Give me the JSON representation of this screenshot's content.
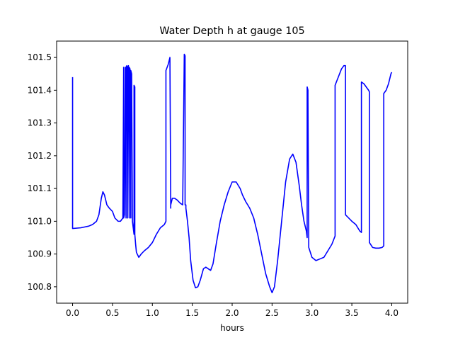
{
  "chart_data": {
    "type": "line",
    "title": "Water Depth h at gauge 105",
    "xlabel": "hours",
    "ylabel": "",
    "xlim": [
      -0.2,
      4.2
    ],
    "ylim": [
      100.75,
      101.55
    ],
    "grid": false,
    "xticks": [
      0.0,
      0.5,
      1.0,
      1.5,
      2.0,
      2.5,
      3.0,
      3.5,
      4.0
    ],
    "xtick_labels": [
      "0.0",
      "0.5",
      "1.0",
      "1.5",
      "2.0",
      "2.5",
      "3.0",
      "3.5",
      "4.0"
    ],
    "yticks": [
      100.8,
      100.9,
      101.0,
      101.1,
      101.2,
      101.3,
      101.4,
      101.5
    ],
    "ytick_labels": [
      "100.8",
      "100.9",
      "101.0",
      "101.1",
      "101.2",
      "101.3",
      "101.4",
      "101.5"
    ],
    "series": [
      {
        "color": "#0000ff",
        "x": [
          0.0,
          0.0,
          0.0,
          0.1,
          0.2,
          0.25,
          0.3,
          0.33,
          0.36,
          0.38,
          0.4,
          0.43,
          0.46,
          0.5,
          0.53,
          0.57,
          0.6,
          0.63,
          0.64,
          0.64,
          0.65,
          0.66,
          0.67,
          0.67,
          0.68,
          0.69,
          0.69,
          0.7,
          0.71,
          0.71,
          0.72,
          0.73,
          0.73,
          0.74,
          0.75,
          0.75,
          0.76,
          0.77,
          0.77,
          0.78,
          0.78,
          0.79,
          0.8,
          0.83,
          0.86,
          0.9,
          0.95,
          1.0,
          1.05,
          1.1,
          1.15,
          1.17,
          1.17,
          1.2,
          1.22,
          1.23,
          1.23,
          1.25,
          1.28,
          1.31,
          1.35,
          1.38,
          1.4,
          1.41,
          1.41,
          1.42,
          1.42,
          1.44,
          1.46,
          1.48,
          1.51,
          1.54,
          1.57,
          1.6,
          1.64,
          1.67,
          1.7,
          1.73,
          1.76,
          1.8,
          1.85,
          1.9,
          1.95,
          2.0,
          2.05,
          2.1,
          2.13,
          2.17,
          2.22,
          2.27,
          2.32,
          2.37,
          2.42,
          2.47,
          2.5,
          2.53,
          2.57,
          2.62,
          2.67,
          2.72,
          2.76,
          2.8,
          2.84,
          2.87,
          2.9,
          2.93,
          2.94,
          2.94,
          2.95,
          2.95,
          2.96,
          3.0,
          3.05,
          3.1,
          3.15,
          3.2,
          3.25,
          3.29,
          3.29,
          3.33,
          3.37,
          3.4,
          3.42,
          3.42,
          3.46,
          3.5,
          3.55,
          3.6,
          3.62,
          3.62,
          3.65,
          3.68,
          3.71,
          3.72,
          3.72,
          3.76,
          3.8,
          3.84,
          3.88,
          3.9,
          3.9,
          3.93,
          3.96,
          3.99,
          4.0
        ],
        "y": [
          101.44,
          100.98,
          100.978,
          100.98,
          100.985,
          100.99,
          101.0,
          101.02,
          101.07,
          101.09,
          101.08,
          101.05,
          101.04,
          101.03,
          101.01,
          101.0,
          101.0,
          101.01,
          101.47,
          101.01,
          101.02,
          101.47,
          101.01,
          101.47,
          101.475,
          101.01,
          101.47,
          101.475,
          101.01,
          101.47,
          101.465,
          101.01,
          101.46,
          101.45,
          101.01,
          101.0,
          100.98,
          100.96,
          101.415,
          101.41,
          100.96,
          100.93,
          100.905,
          100.89,
          100.9,
          100.91,
          100.92,
          100.935,
          100.96,
          100.98,
          100.99,
          101.0,
          101.46,
          101.48,
          101.5,
          101.04,
          101.05,
          101.07,
          101.07,
          101.065,
          101.055,
          101.05,
          101.51,
          101.505,
          101.05,
          101.05,
          101.04,
          101.0,
          100.95,
          100.88,
          100.82,
          100.797,
          100.8,
          100.82,
          100.855,
          100.86,
          100.855,
          100.85,
          100.87,
          100.93,
          101.0,
          101.05,
          101.09,
          101.12,
          101.12,
          101.1,
          101.08,
          101.06,
          101.04,
          101.01,
          100.96,
          100.9,
          100.84,
          100.8,
          100.782,
          100.8,
          100.88,
          101.0,
          101.12,
          101.19,
          101.205,
          101.18,
          101.11,
          101.05,
          101.0,
          100.97,
          100.95,
          101.41,
          101.4,
          101.38,
          100.92,
          100.89,
          100.88,
          100.885,
          100.89,
          100.91,
          100.93,
          100.955,
          101.415,
          101.44,
          101.465,
          101.475,
          101.475,
          101.02,
          101.01,
          101.0,
          100.99,
          100.97,
          100.966,
          101.425,
          101.42,
          101.41,
          101.4,
          101.395,
          100.935,
          100.92,
          100.918,
          100.918,
          100.92,
          100.925,
          101.39,
          101.4,
          101.42,
          101.45,
          101.455
        ]
      }
    ]
  }
}
